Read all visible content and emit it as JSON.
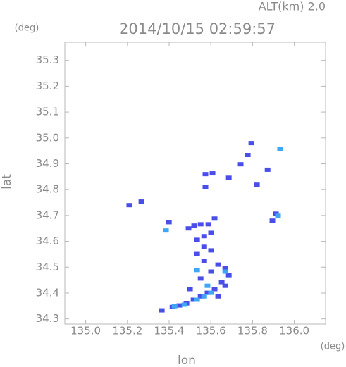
{
  "chart_data": {
    "type": "scatter",
    "title": "2014/10/15 02:59:57",
    "subtitle": "ALT(km) 2.0",
    "y_unit": "(deg)",
    "x_unit": "(deg)",
    "ylabel": "lat",
    "xlabel": "lon",
    "xlim": [
      134.9,
      136.15
    ],
    "ylim": [
      34.28,
      35.37
    ],
    "xticks": [
      {
        "value": 135,
        "label": "135.0"
      },
      135.2,
      135.4,
      135.6,
      135.8,
      {
        "value": 136,
        "label": "136.0"
      }
    ],
    "yticks": [
      34.3,
      34.4,
      34.5,
      34.6,
      34.7,
      34.8,
      34.9,
      {
        "value": 35,
        "label": "35.0"
      },
      35.1,
      35.2,
      35.3
    ],
    "series": [
      {
        "color": "#4a4ee8",
        "x": [
          135.209,
          135.267,
          135.794,
          135.777,
          135.743,
          135.872,
          135.821,
          135.686,
          135.574,
          135.608,
          135.574,
          135.895,
          135.912,
          135.493,
          135.52,
          135.551,
          135.588,
          135.618,
          135.601,
          135.568,
          135.534,
          135.399,
          135.568,
          135.601,
          135.534,
          135.568,
          135.635,
          135.669,
          135.686,
          135.652,
          135.618,
          135.584,
          135.551,
          135.517,
          135.483,
          135.449,
          135.416,
          135.365,
          135.669,
          135.601,
          135.551,
          135.5,
          135.635
        ],
        "y": [
          34.74,
          34.754,
          34.98,
          34.934,
          34.898,
          34.877,
          34.819,
          34.846,
          34.86,
          34.863,
          34.811,
          34.68,
          34.707,
          34.65,
          34.661,
          34.666,
          34.666,
          34.688,
          34.633,
          34.62,
          34.606,
          34.674,
          34.579,
          34.565,
          34.551,
          34.524,
          34.51,
          34.497,
          34.469,
          34.442,
          34.415,
          34.401,
          34.387,
          34.374,
          34.36,
          34.352,
          34.346,
          34.333,
          34.428,
          34.483,
          34.456,
          34.415,
          34.387
        ]
      },
      {
        "color": "#3ea6f2",
        "x": [
          135.534,
          135.568,
          135.601,
          135.473,
          135.385,
          135.534,
          135.669,
          135.922,
          135.426,
          135.584,
          135.932
        ],
        "y": [
          34.374,
          34.387,
          34.401,
          34.355,
          34.642,
          34.489,
          34.483,
          34.699,
          34.349,
          34.428,
          34.956
        ]
      }
    ]
  }
}
